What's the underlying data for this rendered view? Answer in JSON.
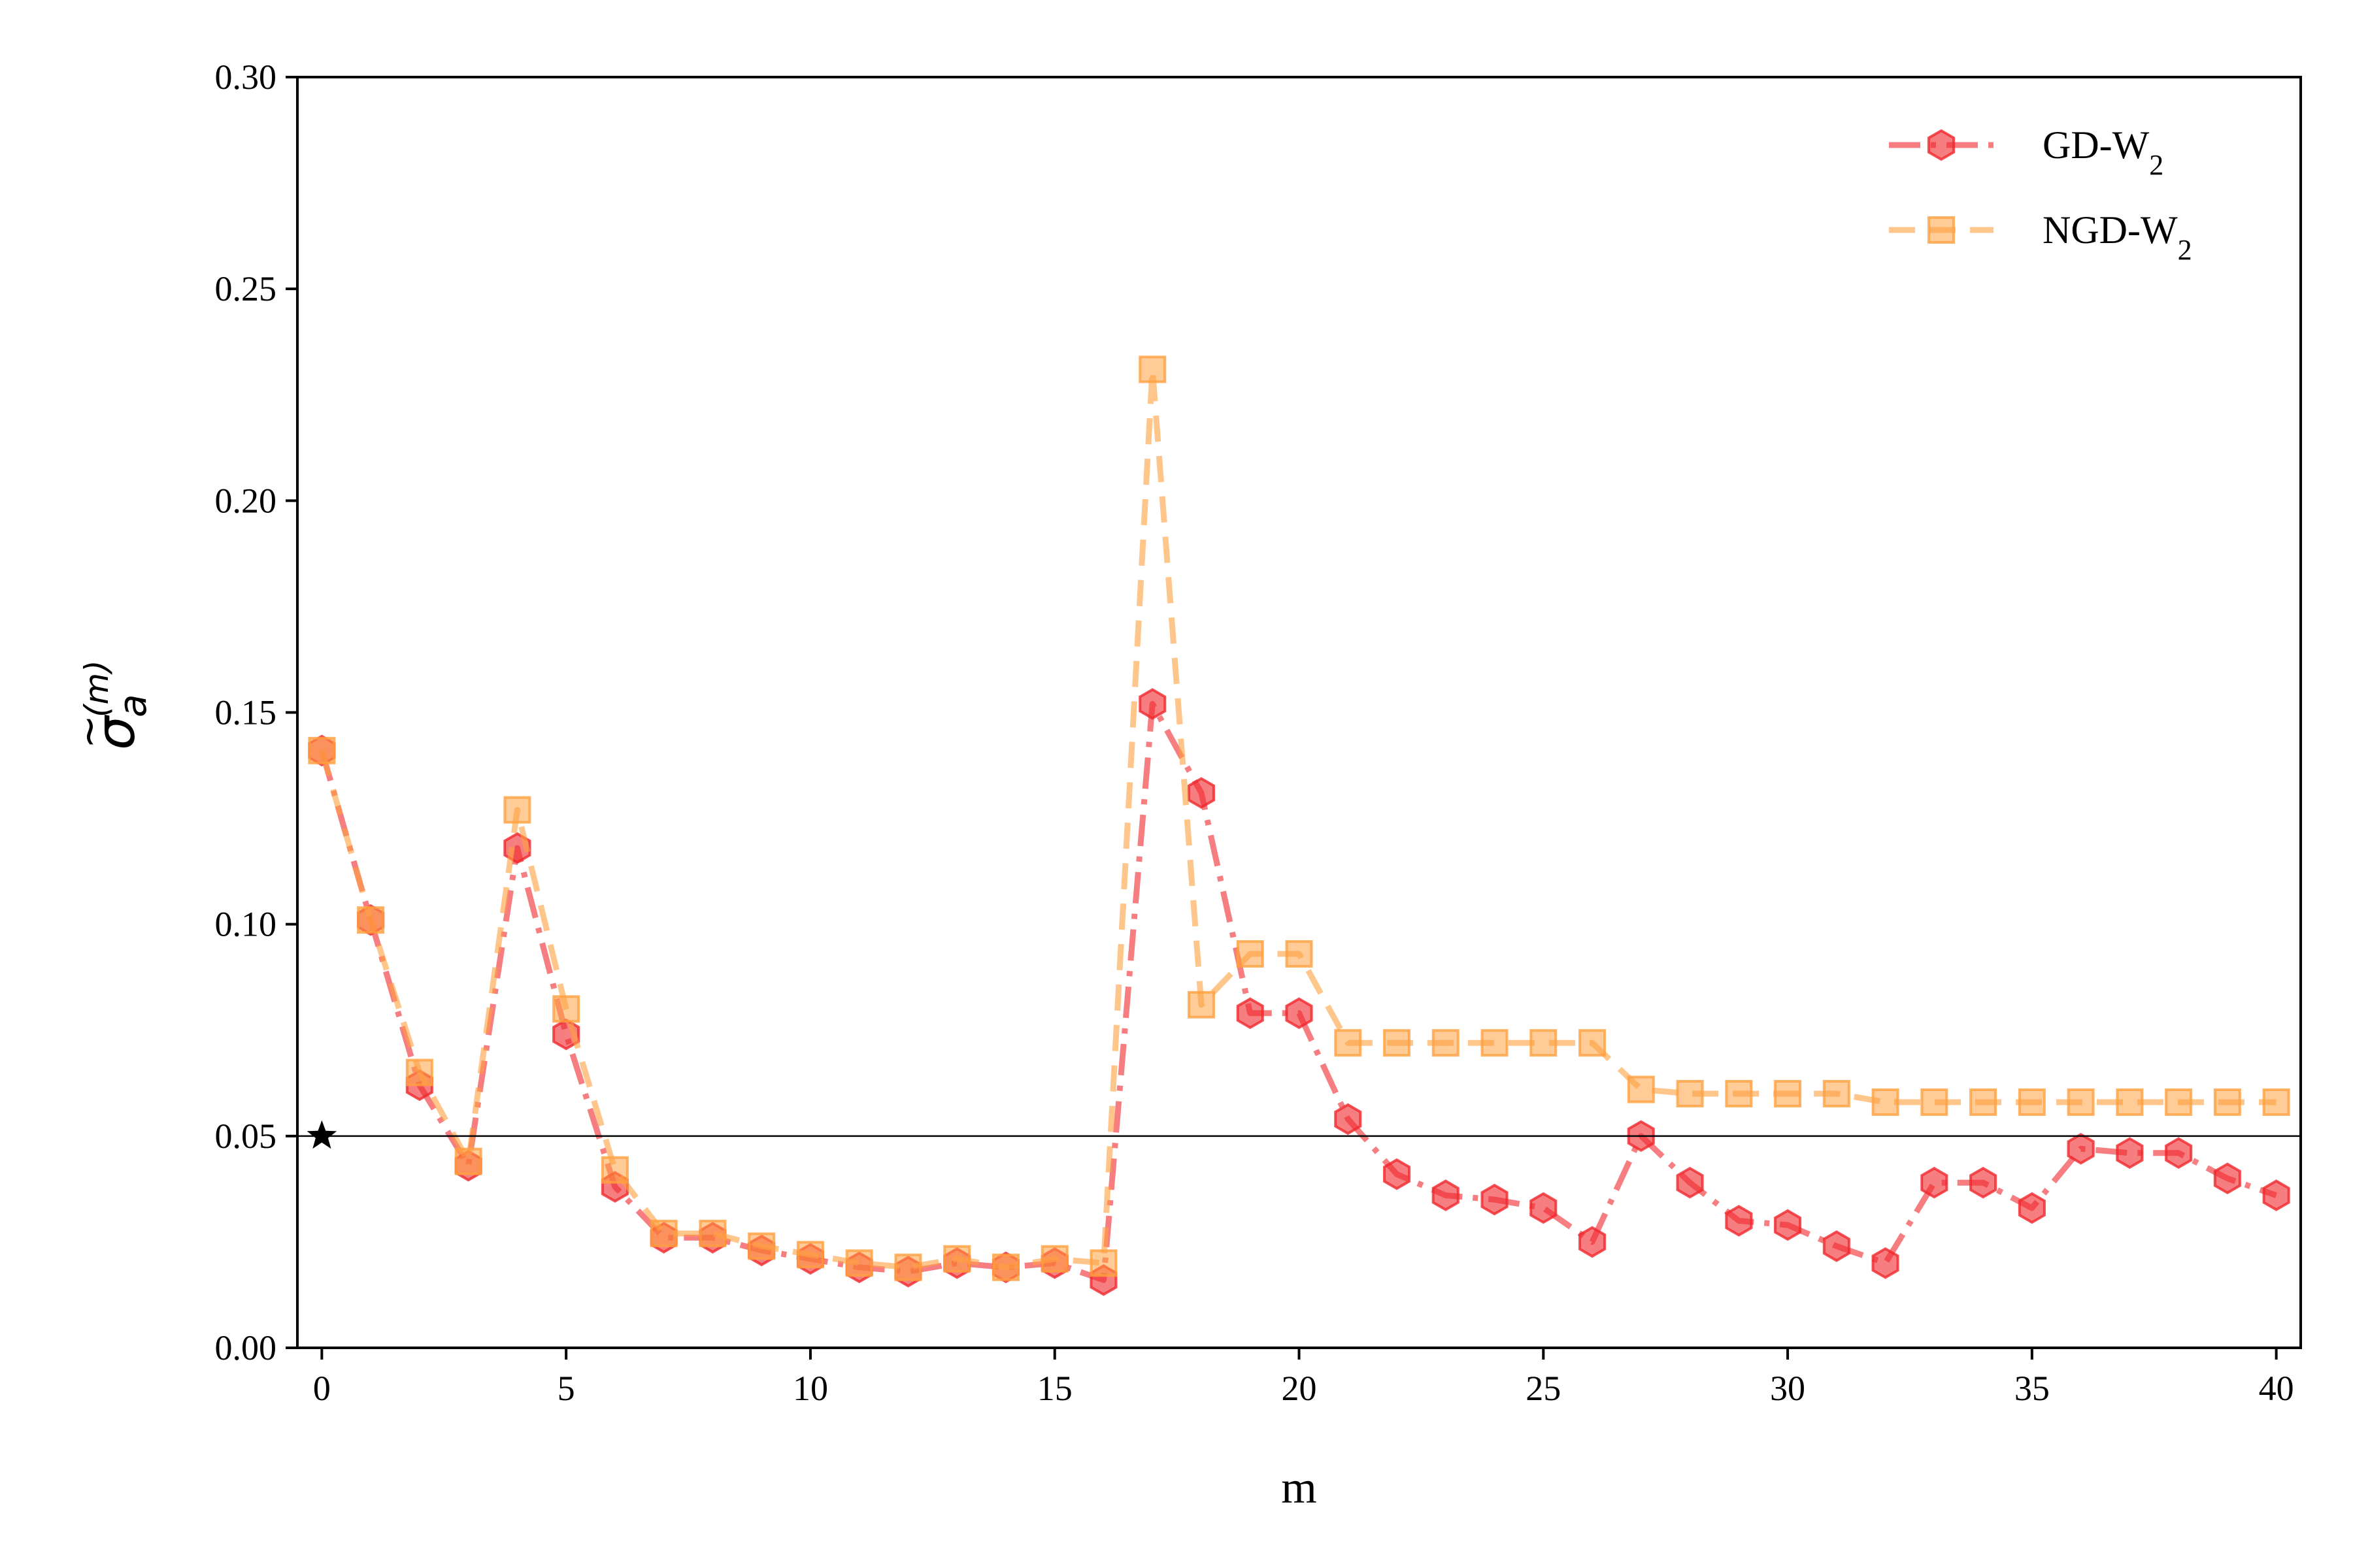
{
  "chart_data": {
    "type": "line",
    "xlabel": "m",
    "ylabel": "σ̃a(m)",
    "ylabel_parts": {
      "base": "σ",
      "accent": "~",
      "sub": "a",
      "sup": "(m)"
    },
    "xlim": [
      -0.5,
      40.5
    ],
    "ylim": [
      0.0,
      0.3
    ],
    "xticks": [
      0,
      5,
      10,
      15,
      20,
      25,
      30,
      35,
      40
    ],
    "xtick_labels": [
      "0",
      "5",
      "10",
      "15",
      "20",
      "25",
      "30",
      "35",
      "40"
    ],
    "yticks": [
      0.0,
      0.05,
      0.1,
      0.15,
      0.2,
      0.25,
      0.3
    ],
    "ytick_labels": [
      "0.00",
      "0.05",
      "0.10",
      "0.15",
      "0.20",
      "0.25",
      "0.30"
    ],
    "grid": false,
    "legend_position": "top-right",
    "reference_line": {
      "y": 0.05,
      "color": "#000000"
    },
    "target_marker": {
      "x": 0,
      "y": 0.05,
      "marker": "star",
      "color": "#000000"
    },
    "x": [
      0,
      1,
      2,
      3,
      4,
      5,
      6,
      7,
      8,
      9,
      10,
      11,
      12,
      13,
      14,
      15,
      16,
      17,
      18,
      19,
      20,
      21,
      22,
      23,
      24,
      25,
      26,
      27,
      28,
      29,
      30,
      31,
      32,
      33,
      34,
      35,
      36,
      37,
      38,
      39,
      40
    ],
    "series": [
      {
        "name": "GD-W",
        "name_sub": "2",
        "color": "#f0282d",
        "marker": "hexagon",
        "linestyle": "dashdot",
        "values": [
          0.141,
          0.101,
          0.062,
          0.043,
          0.118,
          0.074,
          0.038,
          0.026,
          0.026,
          0.023,
          0.021,
          0.019,
          0.018,
          0.02,
          0.019,
          0.02,
          0.016,
          0.152,
          0.131,
          0.079,
          0.079,
          0.054,
          0.041,
          0.036,
          0.035,
          0.033,
          0.025,
          0.05,
          0.039,
          0.03,
          0.029,
          0.024,
          0.02,
          0.039,
          0.039,
          0.033,
          0.047,
          0.046,
          0.046,
          0.04,
          0.036
        ]
      },
      {
        "name": "NGD-W",
        "name_sub": "2",
        "color": "#ffa040",
        "marker": "square",
        "linestyle": "dashed",
        "values": [
          0.141,
          0.101,
          0.065,
          0.044,
          0.127,
          0.08,
          0.042,
          0.027,
          0.027,
          0.024,
          0.022,
          0.02,
          0.019,
          0.021,
          0.019,
          0.021,
          0.02,
          0.231,
          0.081,
          0.093,
          0.093,
          0.072,
          0.072,
          0.072,
          0.072,
          0.072,
          0.072,
          0.061,
          0.06,
          0.06,
          0.06,
          0.06,
          0.058,
          0.058,
          0.058,
          0.058,
          0.058,
          0.058,
          0.058,
          0.058,
          0.058
        ]
      }
    ]
  }
}
